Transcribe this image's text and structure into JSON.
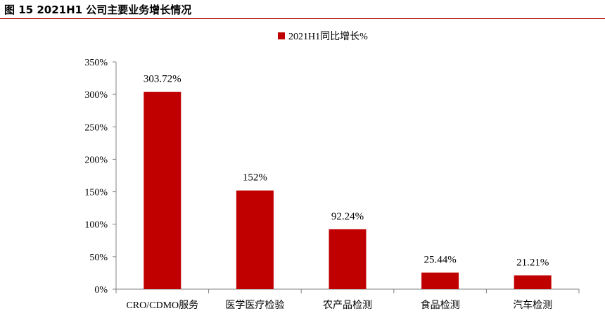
{
  "figure_title": "图 15 2021H1 公司主要业务增长情况",
  "chart_data": {
    "type": "bar",
    "categories": [
      "CRO/CDMO服务",
      "医学医疗检验",
      "农产品检测",
      "食品检测",
      "汽车检测"
    ],
    "series": [
      {
        "name": "2021H1同比增长%",
        "values": [
          303.72,
          152,
          92.24,
          25.44,
          21.21
        ],
        "data_labels": [
          "303.72%",
          "152%",
          "92.24%",
          "25.44%",
          "21.21%"
        ],
        "color": "#c00000"
      }
    ],
    "ylim": [
      0,
      350
    ],
    "yticks": [
      0,
      50,
      100,
      150,
      200,
      250,
      300,
      350
    ],
    "ytick_labels": [
      "0%",
      "50%",
      "100%",
      "150%",
      "200%",
      "250%",
      "300%",
      "350%"
    ],
    "grid": false,
    "legend_position": "top-center"
  }
}
